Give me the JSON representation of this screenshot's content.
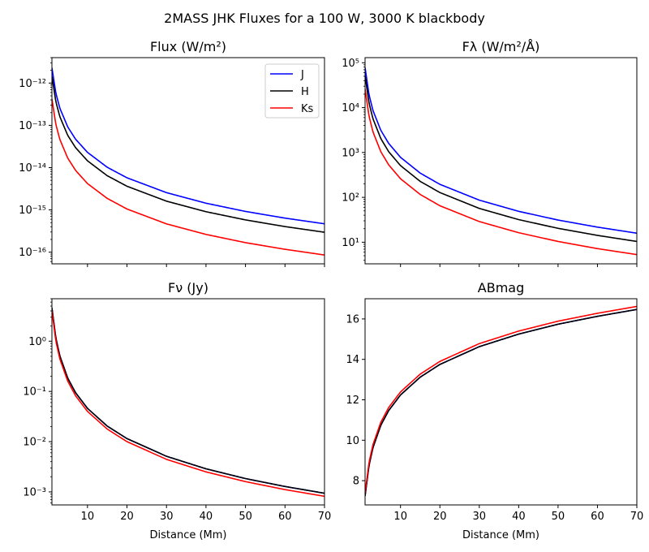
{
  "figure": {
    "suptitle": "2MASS JHK Fluxes for a 100 W, 3000 K blackbody"
  },
  "legend": {
    "entries": [
      {
        "label": "J",
        "color": "#0000ff"
      },
      {
        "label": "H",
        "color": "#000000"
      },
      {
        "label": "Ks",
        "color": "#ff0000"
      }
    ],
    "placement": "upper-right of Flux panel"
  },
  "chart_data": [
    {
      "type": "line",
      "title": "Flux (W/m²)",
      "xlabel": "",
      "ylabel": "",
      "yscale": "log",
      "xlim": [
        1,
        70
      ],
      "ylim": [
        5.3e-17,
        4e-12
      ],
      "x": [
        1,
        2,
        3,
        5,
        7,
        10,
        15,
        20,
        30,
        40,
        50,
        60,
        70
      ],
      "x_ticks": [
        10,
        20,
        30,
        40,
        50,
        60,
        70
      ],
      "y_ticks": [
        1e-16,
        1e-15,
        1e-14,
        1e-13,
        1e-12
      ],
      "y_tick_labels": [
        "10⁻¹⁶",
        "10⁻¹⁵",
        "10⁻¹⁴",
        "10⁻¹³",
        "10⁻¹²"
      ],
      "series": [
        {
          "name": "J",
          "color": "#0000ff",
          "values": [
            2.3e-12,
            5.75e-13,
            2.56e-13,
            9.2e-14,
            4.69e-14,
            2.3e-14,
            1.02e-14,
            5.75e-15,
            2.56e-15,
            1.44e-15,
            9.2e-16,
            6.39e-16,
            4.69e-16
          ]
        },
        {
          "name": "H",
          "color": "#000000",
          "values": [
            1.45e-12,
            3.63e-13,
            1.61e-13,
            5.8e-14,
            2.96e-14,
            1.45e-14,
            6.44e-15,
            3.63e-15,
            1.61e-15,
            9.06e-16,
            5.8e-16,
            4.03e-16,
            2.96e-16
          ]
        },
        {
          "name": "Ks",
          "color": "#ff0000",
          "values": [
            4.2e-13,
            1.05e-13,
            4.67e-14,
            1.68e-14,
            8.57e-15,
            4.2e-15,
            1.87e-15,
            1.05e-15,
            4.67e-16,
            2.63e-16,
            1.68e-16,
            1.17e-16,
            8.57e-17
          ]
        }
      ]
    },
    {
      "type": "line",
      "title": "Fλ (W/m²/Å)",
      "xlabel": "",
      "ylabel": "",
      "yscale": "log",
      "xlim": [
        1,
        70
      ],
      "ylim": [
        3.3,
        130000
      ],
      "x": [
        1,
        2,
        3,
        5,
        7,
        10,
        15,
        20,
        30,
        40,
        50,
        60,
        70
      ],
      "x_ticks": [
        10,
        20,
        30,
        40,
        50,
        60,
        70
      ],
      "y_ticks": [
        10,
        100,
        1000,
        10000,
        100000
      ],
      "y_tick_labels": [
        "10¹",
        "10²",
        "10³",
        "10⁴",
        "10⁵"
      ],
      "series": [
        {
          "name": "J",
          "color": "#0000ff",
          "values": [
            78000,
            19500,
            8667,
            3120,
            1592,
            780,
            347,
            195,
            86.7,
            48.8,
            31.2,
            21.7,
            15.9
          ]
        },
        {
          "name": "H",
          "color": "#000000",
          "values": [
            51000,
            12750,
            5667,
            2040,
            1041,
            510,
            227,
            128,
            56.7,
            31.9,
            20.4,
            14.2,
            10.4
          ]
        },
        {
          "name": "Ks",
          "color": "#ff0000",
          "values": [
            26000,
            6500,
            2889,
            1040,
            531,
            260,
            116,
            65,
            28.9,
            16.3,
            10.4,
            7.2,
            5.3
          ]
        }
      ]
    },
    {
      "type": "line",
      "title": "Fν (Jy)",
      "xlabel": "Distance (Mm)",
      "ylabel": "",
      "yscale": "log",
      "xlim": [
        1,
        70
      ],
      "ylim": [
        0.00055,
        7
      ],
      "x": [
        1,
        2,
        3,
        5,
        7,
        10,
        15,
        20,
        30,
        40,
        50,
        60,
        70
      ],
      "x_ticks": [
        10,
        20,
        30,
        40,
        50,
        60,
        70
      ],
      "x_tick_labels": [
        "10",
        "20",
        "30",
        "40",
        "50",
        "60",
        "70"
      ],
      "y_ticks": [
        0.001,
        0.01,
        0.1,
        1
      ],
      "y_tick_labels": [
        "10⁻³",
        "10⁻²",
        "10⁻¹",
        "10⁰"
      ],
      "series": [
        {
          "name": "J",
          "color": "#0000ff",
          "values": [
            4.6,
            1.15,
            0.511,
            0.184,
            0.0939,
            0.046,
            0.0204,
            0.0115,
            0.00511,
            0.00288,
            0.00184,
            0.00128,
            0.000939
          ]
        },
        {
          "name": "H",
          "color": "#000000",
          "values": [
            4.6,
            1.15,
            0.511,
            0.184,
            0.0939,
            0.046,
            0.0204,
            0.0115,
            0.00511,
            0.00288,
            0.00184,
            0.00128,
            0.000939
          ]
        },
        {
          "name": "Ks",
          "color": "#ff0000",
          "values": [
            4.0,
            1.0,
            0.444,
            0.16,
            0.0816,
            0.04,
            0.0178,
            0.01,
            0.00444,
            0.0025,
            0.0016,
            0.00111,
            0.000816
          ]
        }
      ]
    },
    {
      "type": "line",
      "title": "ABmag",
      "xlabel": "Distance (Mm)",
      "ylabel": "",
      "yscale": "linear",
      "xlim": [
        1,
        70
      ],
      "ylim": [
        6.8,
        17
      ],
      "x": [
        1,
        2,
        3,
        5,
        7,
        10,
        15,
        20,
        30,
        40,
        50,
        60,
        70
      ],
      "x_ticks": [
        10,
        20,
        30,
        40,
        50,
        60,
        70
      ],
      "x_tick_labels": [
        "10",
        "20",
        "30",
        "40",
        "50",
        "60",
        "70"
      ],
      "y_ticks": [
        8,
        10,
        12,
        14,
        16
      ],
      "y_tick_labels": [
        "8",
        "10",
        "12",
        "14",
        "16"
      ],
      "series": [
        {
          "name": "J",
          "color": "#0000ff",
          "values": [
            7.24,
            8.75,
            9.63,
            10.74,
            11.47,
            12.24,
            13.12,
            13.75,
            14.63,
            15.25,
            15.74,
            16.13,
            16.47
          ]
        },
        {
          "name": "H",
          "color": "#000000",
          "values": [
            7.24,
            8.75,
            9.63,
            10.74,
            11.47,
            12.24,
            13.12,
            13.75,
            14.63,
            15.25,
            15.74,
            16.13,
            16.47
          ]
        },
        {
          "name": "Ks",
          "color": "#ff0000",
          "values": [
            7.39,
            8.9,
            9.78,
            10.89,
            11.62,
            12.39,
            13.27,
            13.9,
            14.78,
            15.4,
            15.89,
            16.28,
            16.62
          ]
        }
      ]
    }
  ]
}
